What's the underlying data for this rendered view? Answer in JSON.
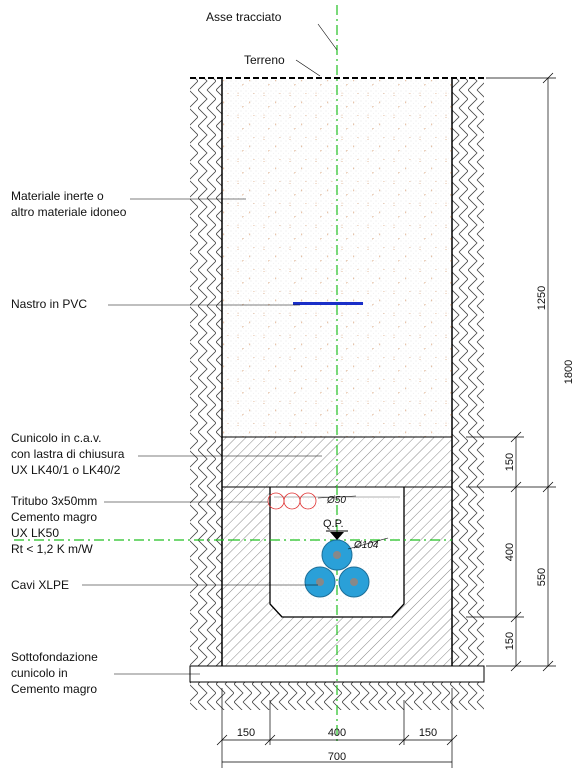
{
  "top_labels": {
    "axis": "Asse tracciato",
    "ground": "Terreno"
  },
  "labels": {
    "fill_line1": "Materiale inerte o",
    "fill_line2": "altro materiale idoneo",
    "pvc_tape": "Nastro in PVC",
    "cunicolo_line1": "Cunicolo in c.a.v.",
    "cunicolo_line2": "con lastra di chiusura",
    "cunicolo_line3": "UX LK40/1 o LK40/2",
    "tritubo_line1": "Tritubo 3x50mm",
    "tritubo_line2": "Cemento magro",
    "tritubo_line3": "UX LK50",
    "tritubo_line4": "Rt < 1,2 K m/W",
    "cables": "Cavi XLPE",
    "sotto_line1": "Sottofondazione",
    "sotto_line2": "cunicolo in",
    "sotto_line3": "Cemento magro"
  },
  "annotations": {
    "tube_diameter": "Ø50",
    "cable_diameter": "Ø104",
    "qp": "Q.P."
  },
  "dimensions_right": {
    "d1250": "1250",
    "d150_top": "150",
    "d400": "400",
    "d550": "550",
    "d150_bottom": "150",
    "total": "1800"
  },
  "dimensions_bottom": {
    "left": "150",
    "center": "400",
    "right": "150",
    "total": "700"
  },
  "colors": {
    "axis_line": "#22c022",
    "pvc_tape": "#1a2fc8",
    "cable": "#2aa0d8",
    "tube": "#e03030",
    "fill_dots": "#c8783c"
  }
}
